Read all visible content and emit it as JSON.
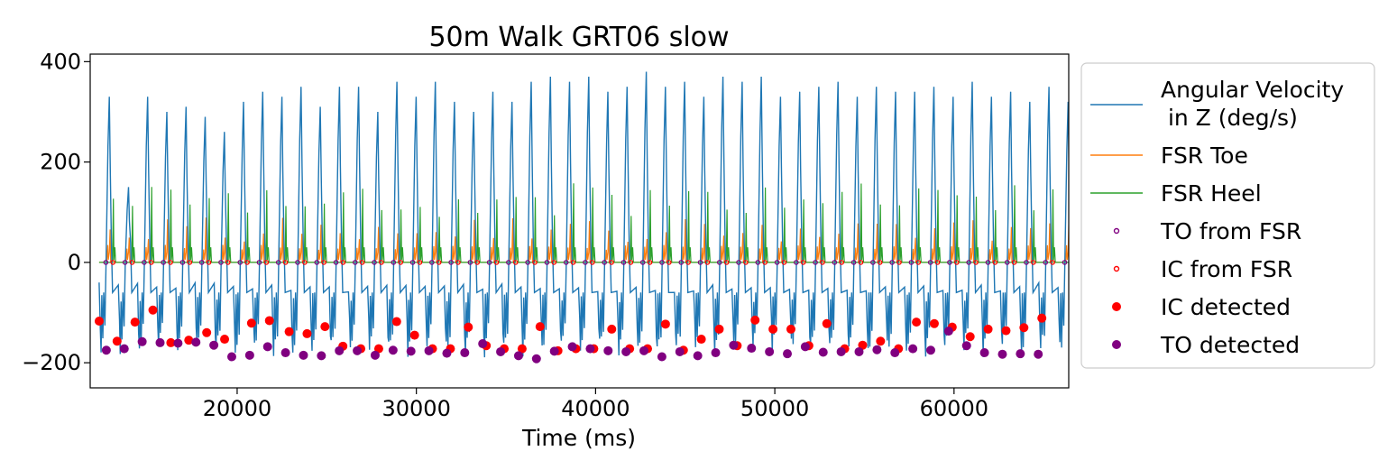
{
  "chart_data": {
    "type": "line",
    "title": "50m Walk GRT06 slow",
    "xlabel": "Time (ms)",
    "ylabel": "",
    "xlim": [
      11800,
      66400
    ],
    "ylim": [
      -250,
      415
    ],
    "xticks": [
      20000,
      30000,
      40000,
      50000,
      60000
    ],
    "xtick_labels": [
      "20000",
      "30000",
      "40000",
      "50000",
      "60000"
    ],
    "yticks": [
      400,
      200,
      0,
      -200
    ],
    "ytick_labels": [
      "400",
      "200",
      "0",
      "−200"
    ],
    "grid": false,
    "legend_position": "outside-right",
    "colors": {
      "angular": "#1f77b4",
      "toe": "#ff7f0e",
      "heel": "#2ca02c",
      "to_fsr": "#800080",
      "ic_fsr": "#ff0000",
      "ic_detected": "#ff0000",
      "to_detected": "#800080"
    },
    "legend": [
      {
        "key": "angular",
        "label_lines": [
          "Angular Velocity",
          " in Z (deg/s)"
        ],
        "marker": "line"
      },
      {
        "key": "toe",
        "label_lines": [
          "FSR Toe"
        ],
        "marker": "line"
      },
      {
        "key": "heel",
        "label_lines": [
          "FSR Heel"
        ],
        "marker": "line"
      },
      {
        "key": "to_fsr",
        "label_lines": [
          "TO from FSR"
        ],
        "marker": "open-circle"
      },
      {
        "key": "ic_fsr",
        "label_lines": [
          "IC from FSR"
        ],
        "marker": "open-circle"
      },
      {
        "key": "ic_detected",
        "label_lines": [
          "IC detected"
        ],
        "marker": "filled-circle"
      },
      {
        "key": "to_detected",
        "label_lines": [
          "TO detected"
        ],
        "marker": "filled-circle"
      }
    ],
    "gait": {
      "start_ms": 12300,
      "stride_ms": 1070,
      "n_strides": 51,
      "swing_peaks": [
        330,
        150,
        330,
        300,
        310,
        290,
        260,
        320,
        340,
        330,
        350,
        310,
        350,
        350,
        300,
        360,
        330,
        360,
        320,
        300,
        340,
        320,
        360,
        370,
        360,
        370,
        340,
        350,
        380,
        350,
        360,
        330,
        370,
        360,
        370,
        330,
        340,
        350,
        360,
        330,
        350,
        340,
        340,
        350,
        330,
        360,
        330,
        340,
        320,
        350,
        320
      ],
      "toe_peaks": 40,
      "heel_peaks": 90
    },
    "ic_detected": [
      [
        12300,
        -117
      ],
      [
        13300,
        -157
      ],
      [
        14300,
        -119
      ],
      [
        15300,
        -95
      ],
      [
        16300,
        -160
      ],
      [
        17300,
        -155
      ],
      [
        18300,
        -140
      ],
      [
        19300,
        -153
      ],
      [
        20800,
        -121
      ],
      [
        21800,
        -116
      ],
      [
        22900,
        -138
      ],
      [
        23900,
        -142
      ],
      [
        24900,
        -128
      ],
      [
        25900,
        -167
      ],
      [
        26900,
        -172
      ],
      [
        27900,
        -172
      ],
      [
        28900,
        -118
      ],
      [
        29900,
        -145
      ],
      [
        30900,
        -172
      ],
      [
        31900,
        -172
      ],
      [
        32900,
        -129
      ],
      [
        33900,
        -166
      ],
      [
        34900,
        -172
      ],
      [
        35900,
        -172
      ],
      [
        36900,
        -128
      ],
      [
        37900,
        -176
      ],
      [
        38900,
        -172
      ],
      [
        39900,
        -172
      ],
      [
        40900,
        -133
      ],
      [
        41900,
        -172
      ],
      [
        42900,
        -172
      ],
      [
        43900,
        -123
      ],
      [
        44900,
        -175
      ],
      [
        45900,
        -153
      ],
      [
        46900,
        -133
      ],
      [
        47900,
        -166
      ],
      [
        48900,
        -115
      ],
      [
        49900,
        -133
      ],
      [
        50900,
        -133
      ],
      [
        51900,
        -166
      ],
      [
        52900,
        -122
      ],
      [
        53900,
        -172
      ],
      [
        54900,
        -165
      ],
      [
        55900,
        -157
      ],
      [
        56900,
        -172
      ],
      [
        57900,
        -119
      ],
      [
        58900,
        -122
      ],
      [
        59900,
        -129
      ],
      [
        60900,
        -148
      ],
      [
        61900,
        -133
      ],
      [
        62900,
        -136
      ],
      [
        63900,
        -130
      ],
      [
        64900,
        -111
      ]
    ],
    "to_detected": [
      [
        12700,
        -175
      ],
      [
        13700,
        -172
      ],
      [
        14700,
        -158
      ],
      [
        15700,
        -160
      ],
      [
        16700,
        -161
      ],
      [
        17700,
        -159
      ],
      [
        18700,
        -165
      ],
      [
        19700,
        -188
      ],
      [
        20700,
        -185
      ],
      [
        21700,
        -168
      ],
      [
        22700,
        -180
      ],
      [
        23700,
        -185
      ],
      [
        24700,
        -186
      ],
      [
        25700,
        -176
      ],
      [
        26700,
        -176
      ],
      [
        27700,
        -185
      ],
      [
        28700,
        -175
      ],
      [
        29700,
        -177
      ],
      [
        30700,
        -176
      ],
      [
        31700,
        -181
      ],
      [
        32700,
        -180
      ],
      [
        33700,
        -162
      ],
      [
        34700,
        -178
      ],
      [
        35700,
        -186
      ],
      [
        36700,
        -192
      ],
      [
        37700,
        -177
      ],
      [
        38700,
        -168
      ],
      [
        39700,
        -172
      ],
      [
        40700,
        -176
      ],
      [
        41700,
        -178
      ],
      [
        42700,
        -176
      ],
      [
        43700,
        -188
      ],
      [
        44700,
        -178
      ],
      [
        45700,
        -186
      ],
      [
        46700,
        -180
      ],
      [
        47700,
        -165
      ],
      [
        48700,
        -171
      ],
      [
        49700,
        -178
      ],
      [
        50700,
        -182
      ],
      [
        51700,
        -168
      ],
      [
        52700,
        -179
      ],
      [
        53700,
        -178
      ],
      [
        54700,
        -178
      ],
      [
        55700,
        -174
      ],
      [
        56700,
        -180
      ],
      [
        57700,
        -172
      ],
      [
        58700,
        -175
      ],
      [
        59700,
        -137
      ],
      [
        60700,
        -166
      ],
      [
        61700,
        -180
      ],
      [
        62700,
        -183
      ],
      [
        63700,
        -182
      ],
      [
        64700,
        -183
      ]
    ]
  }
}
